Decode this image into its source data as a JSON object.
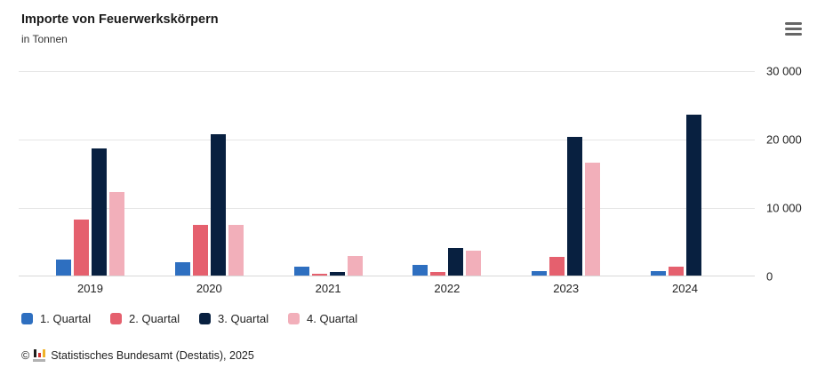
{
  "header": {
    "title": "Importe von Feuerwerkskörpern",
    "subtitle": "in Tonnen"
  },
  "menu": {
    "icon": "hamburger-menu-icon"
  },
  "chart_data": {
    "type": "bar",
    "title": "Importe von Feuerwerkskörpern",
    "subtitle": "in Tonnen",
    "unit": "Tonnen",
    "categories": [
      "2019",
      "2020",
      "2021",
      "2022",
      "2023",
      "2024"
    ],
    "series": [
      {
        "name": "1. Quartal",
        "color": "#2e6fc0",
        "values": [
          2400,
          2000,
          1300,
          1500,
          700,
          600
        ]
      },
      {
        "name": "2. Quartal",
        "color": "#e5606e",
        "values": [
          8200,
          7400,
          200,
          500,
          2700,
          1300
        ]
      },
      {
        "name": "3. Quartal",
        "color": "#082040",
        "values": [
          18600,
          20700,
          500,
          4000,
          20300,
          23500
        ]
      },
      {
        "name": "4. Quartal",
        "color": "#f2afba",
        "values": [
          12200,
          7400,
          2900,
          3700,
          16500,
          null
        ]
      }
    ],
    "ylim": [
      0,
      30000
    ],
    "yticks": [
      {
        "value": 0,
        "label": "0"
      },
      {
        "value": 10000,
        "label": "10 000"
      },
      {
        "value": 20000,
        "label": "20 000"
      },
      {
        "value": 30000,
        "label": "30 000"
      }
    ],
    "grid": true,
    "legend_position": "bottom",
    "xlabel": "",
    "ylabel": ""
  },
  "footer": {
    "copyright": "©",
    "logo_icon": "destatis-bar-chart-logo",
    "logo_colors": {
      "black": "#1d1d1b",
      "red": "#d22f2f",
      "gold": "#f0b229",
      "base_gray": "#b2b2b2"
    },
    "source": "Statistisches Bundesamt (Destatis), 2025"
  }
}
